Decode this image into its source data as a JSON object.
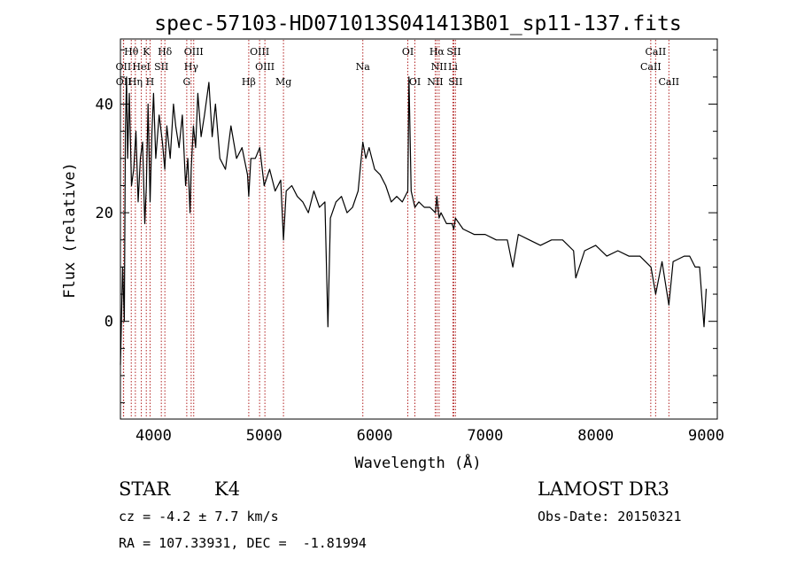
{
  "chart_data": {
    "type": "line",
    "title": "spec-57103-HD071013S041413B01_sp11-137.fits",
    "xlabel": "Wavelength (Å)",
    "ylabel": "Flux (relative)",
    "xlim": [
      3700,
      9100
    ],
    "ylim": [
      -18,
      52
    ],
    "xticks": [
      4000,
      5000,
      6000,
      7000,
      8000,
      9000
    ],
    "yticks": [
      0,
      20,
      40
    ],
    "grid": false,
    "line_color": "#000000",
    "marker_color": "#b22222",
    "spectrum": {
      "x": [
        3700,
        3720,
        3735,
        3745,
        3755,
        3765,
        3780,
        3800,
        3820,
        3840,
        3860,
        3880,
        3900,
        3920,
        3935,
        3950,
        3968,
        3985,
        4000,
        4020,
        4050,
        4080,
        4101,
        4120,
        4150,
        4180,
        4200,
        4230,
        4260,
        4290,
        4310,
        4330,
        4340,
        4360,
        4380,
        4400,
        4430,
        4460,
        4500,
        4530,
        4560,
        4600,
        4650,
        4700,
        4750,
        4800,
        4850,
        4861,
        4880,
        4920,
        4960,
        5000,
        5050,
        5100,
        5150,
        5175,
        5200,
        5250,
        5300,
        5350,
        5400,
        5450,
        5500,
        5550,
        5577,
        5600,
        5650,
        5700,
        5750,
        5800,
        5850,
        5893,
        5920,
        5950,
        6000,
        6050,
        6100,
        6150,
        6200,
        6250,
        6300,
        6310,
        6330,
        6364,
        6400,
        6450,
        6500,
        6550,
        6563,
        6583,
        6600,
        6650,
        6700,
        6716,
        6731,
        6800,
        6900,
        7000,
        7100,
        7200,
        7250,
        7300,
        7400,
        7500,
        7600,
        7700,
        7800,
        7820,
        7900,
        8000,
        8100,
        8200,
        8300,
        8400,
        8500,
        8542,
        8600,
        8662,
        8700,
        8800,
        8850,
        8900,
        8940,
        8980,
        9000
      ],
      "y": [
        -8,
        10,
        0,
        35,
        45,
        30,
        42,
        25,
        28,
        35,
        22,
        30,
        33,
        18,
        25,
        40,
        22,
        35,
        42,
        30,
        38,
        33,
        28,
        36,
        30,
        40,
        36,
        32,
        38,
        25,
        30,
        20,
        28,
        36,
        32,
        42,
        34,
        38,
        44,
        34,
        40,
        30,
        28,
        36,
        30,
        32,
        27,
        23,
        30,
        30,
        32,
        25,
        28,
        24,
        26,
        15,
        24,
        25,
        23,
        22,
        20,
        24,
        21,
        22,
        -1,
        19,
        22,
        23,
        20,
        21,
        24,
        33,
        30,
        32,
        28,
        27,
        25,
        22,
        23,
        22,
        24,
        45,
        24,
        21,
        22,
        21,
        21,
        20,
        23,
        19,
        20,
        18,
        18,
        17,
        19,
        17,
        16,
        16,
        15,
        15,
        10,
        16,
        15,
        14,
        15,
        15,
        13,
        8,
        13,
        14,
        12,
        13,
        12,
        12,
        10,
        5,
        11,
        3,
        11,
        12,
        12,
        10,
        10,
        -1,
        6
      ]
    },
    "lines": [
      {
        "label": "Hθ",
        "wl": 3798,
        "row": 1
      },
      {
        "label": "K",
        "wl": 3934,
        "row": 1
      },
      {
        "label": "Hδ",
        "wl": 4102,
        "row": 1
      },
      {
        "label": "OIII",
        "wl": 4363,
        "row": 1
      },
      {
        "label": "OIII",
        "wl": 4959,
        "row": 1
      },
      {
        "label": "OI",
        "wl": 6300,
        "row": 1
      },
      {
        "label": "Hα",
        "wl": 6563,
        "row": 1
      },
      {
        "label": "SII",
        "wl": 6716,
        "row": 1
      },
      {
        "label": "CaII",
        "wl": 8542,
        "row": 1
      },
      {
        "label": "OII",
        "wl": 3727,
        "row": 2
      },
      {
        "label": "HeI",
        "wl": 3889,
        "row": 2
      },
      {
        "label": "SII",
        "wl": 4070,
        "row": 2
      },
      {
        "label": "Hγ",
        "wl": 4340,
        "row": 2
      },
      {
        "label": "OIII",
        "wl": 5007,
        "row": 2
      },
      {
        "label": "Na",
        "wl": 5893,
        "row": 2
      },
      {
        "label": "NII",
        "wl": 6583,
        "row": 2
      },
      {
        "label": "Li",
        "wl": 6708,
        "row": 2
      },
      {
        "label": "CaII",
        "wl": 8498,
        "row": 2
      },
      {
        "label": "OII",
        "wl": 3729,
        "row": 3
      },
      {
        "label": "Hη",
        "wl": 3835,
        "row": 3
      },
      {
        "label": "H",
        "wl": 3968,
        "row": 3
      },
      {
        "label": "G",
        "wl": 4300,
        "row": 3
      },
      {
        "label": "Hβ",
        "wl": 4861,
        "row": 3
      },
      {
        "label": "Mg",
        "wl": 5175,
        "row": 3
      },
      {
        "label": "OI",
        "wl": 6364,
        "row": 3
      },
      {
        "label": "NII",
        "wl": 6548,
        "row": 3
      },
      {
        "label": "SII",
        "wl": 6731,
        "row": 3
      },
      {
        "label": "CaII",
        "wl": 8662,
        "row": 3
      }
    ]
  },
  "info": {
    "object_type": "STAR",
    "subclass": "K4",
    "survey": "LAMOST DR3",
    "redshift": "cz = -4.2 ± 7.7 km/s",
    "obs_date": "Obs-Date: 20150321",
    "coords": "RA = 107.33931, DEC =  -1.81994"
  }
}
